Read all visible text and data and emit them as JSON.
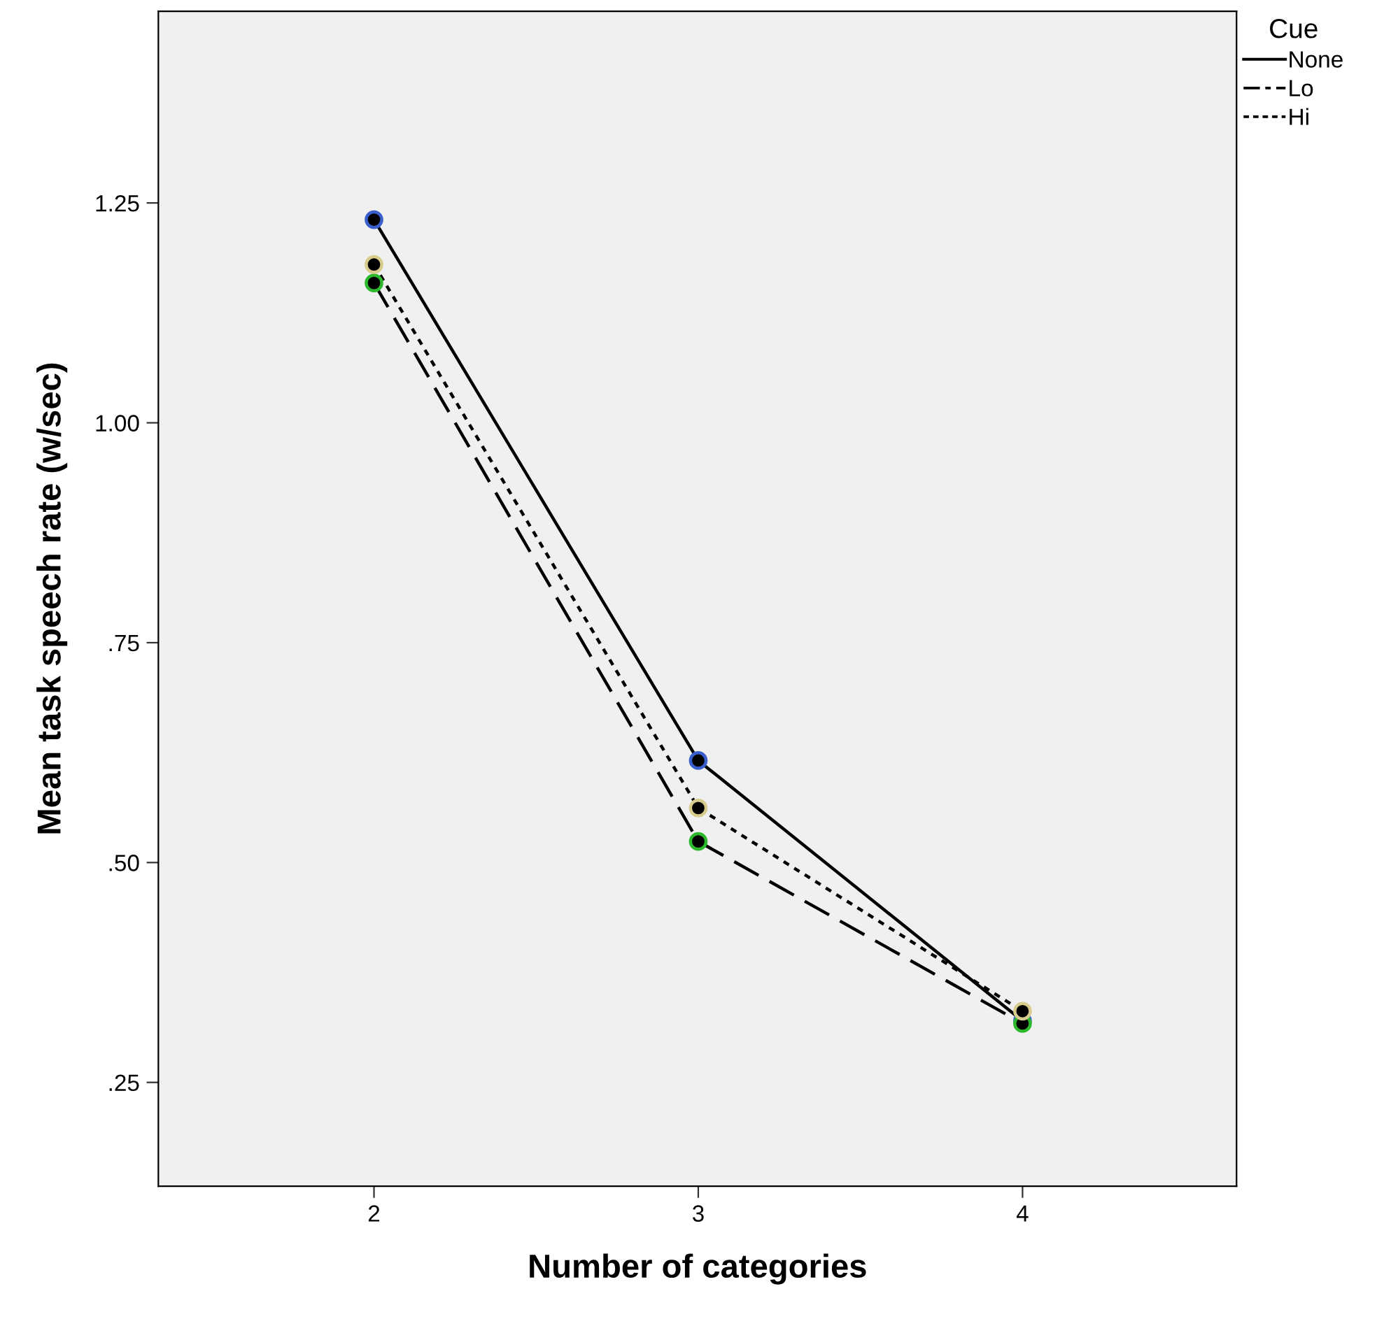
{
  "chart_data": {
    "type": "line",
    "xlabel": "Number of categories",
    "ylabel": "Mean task speech rate (w/sec)",
    "legend_title": "Cue",
    "legend": "right",
    "marker": "circle",
    "grid": false,
    "categories": [
      "2",
      "3",
      "4"
    ],
    "ylim": [
      0.132,
      1.468
    ],
    "yticks": [
      {
        "value": 0.25,
        "label": ".25"
      },
      {
        "value": 0.5,
        "label": ".50"
      },
      {
        "value": 0.75,
        "label": ".75"
      },
      {
        "value": 1.0,
        "label": "1.00"
      },
      {
        "value": 1.25,
        "label": "1.25"
      }
    ],
    "series": [
      {
        "name": "None",
        "color": "#3a5fcd",
        "line_style": "solid",
        "values": [
          1.231,
          0.616,
          0.32
        ]
      },
      {
        "name": "Lo",
        "color": "#2eb82e",
        "line_style": "dashed",
        "values": [
          1.159,
          0.524,
          0.317
        ]
      },
      {
        "name": "Hi",
        "color": "#d8cc8c",
        "line_style": "dotted",
        "values": [
          1.18,
          0.562,
          0.331
        ]
      }
    ]
  }
}
